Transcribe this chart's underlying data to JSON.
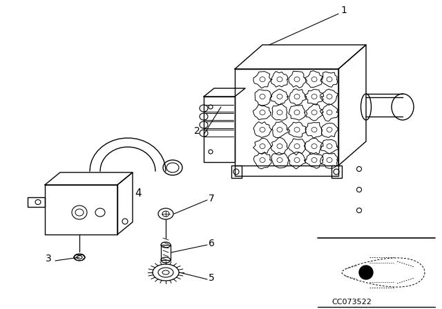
{
  "background_color": "#ffffff",
  "line_color": "#000000",
  "text_color": "#000000",
  "part_number_code": "CC073522",
  "label_fontsize": 10,
  "small_fontsize": 7,
  "figsize": [
    6.4,
    4.48
  ],
  "dpi": 100
}
